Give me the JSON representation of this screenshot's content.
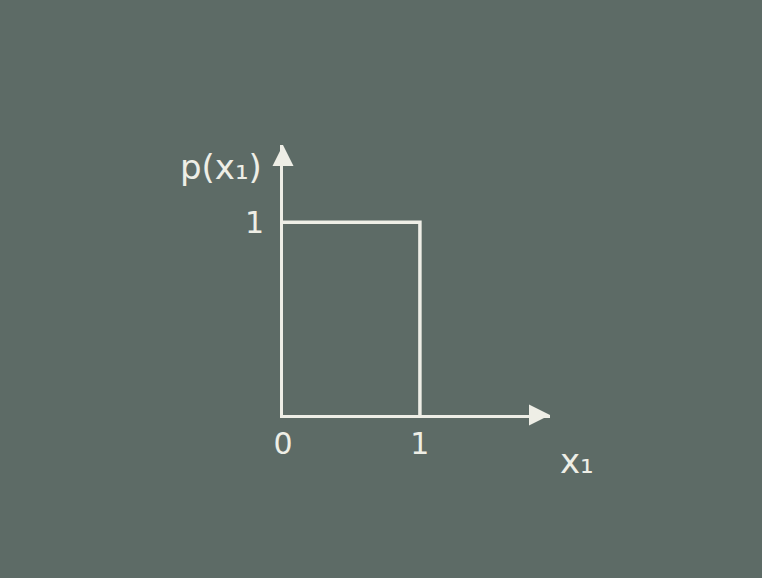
{
  "chart_data": {
    "type": "line",
    "x_label": "x₁",
    "y_label": "p(x₁)",
    "x": [
      0,
      1,
      1
    ],
    "values": [
      1,
      1,
      0
    ],
    "color": "#eeeee6",
    "xlim": [
      0,
      1.95
    ],
    "ylim": [
      0,
      1.4
    ],
    "xticks": [
      0,
      1
    ],
    "yticks": [
      1
    ],
    "grid": false
  }
}
